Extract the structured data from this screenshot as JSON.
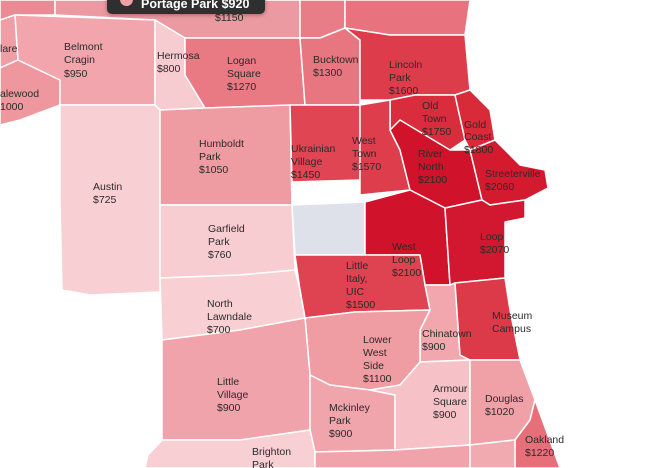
{
  "tooltip": {
    "text": "Portage Park $920",
    "dot_color": "#f0a0a6"
  },
  "map": {
    "lake_color": "#ffffff",
    "no_data_color": "#dfe1ea",
    "neighborhoods": [
      {
        "id": "top-left-edge",
        "name": "",
        "price": "",
        "color": "#e98a95"
      },
      {
        "id": "top-strip",
        "name": "",
        "price": "$1150",
        "color": "#ec9aa2"
      },
      {
        "id": "top-right-a",
        "name": "",
        "price": "",
        "color": "#e87c87"
      },
      {
        "id": "top-right-b",
        "name": "",
        "price": "",
        "color": "#e8737e"
      },
      {
        "id": "clare-edge",
        "name": "lare",
        "price": "",
        "color": "#ef9ea6"
      },
      {
        "id": "edgewater-edge",
        "name": "alewood",
        "price": "1000",
        "color": "#ee979f"
      },
      {
        "id": "belmont-cragin",
        "name": "Belmont Cragin",
        "price": "$950",
        "color": "#f2a5ac"
      },
      {
        "id": "hermosa",
        "name": "Hermosa",
        "price": "$800",
        "color": "#f7ccd0"
      },
      {
        "id": "logan-square",
        "name": "Logan Square",
        "price": "$1270",
        "color": "#e97983"
      },
      {
        "id": "bucktown",
        "name": "Bucktown",
        "price": "$1300",
        "color": "#e87680"
      },
      {
        "id": "lincoln-park",
        "name": "Lincoln Park",
        "price": "$1600",
        "color": "#dd3d4b"
      },
      {
        "id": "old-town",
        "name": "Old Town",
        "price": "$1750",
        "color": "#d92c3c"
      },
      {
        "id": "gold-coast",
        "name": "Gold Coast",
        "price": "$1800",
        "color": "#d92a3a"
      },
      {
        "id": "austin",
        "name": "Austin",
        "price": "$725",
        "color": "#f8cfd3"
      },
      {
        "id": "humboldt-park",
        "name": "Humboldt Park",
        "price": "$1050",
        "color": "#ee9ba2"
      },
      {
        "id": "ukrainian-village",
        "name": "Ukrainian Village",
        "price": "$1450",
        "color": "#e04553"
      },
      {
        "id": "west-town",
        "name": "West Town",
        "price": "$1570",
        "color": "#de3e4c"
      },
      {
        "id": "river-north",
        "name": "River North",
        "price": "$2100",
        "color": "#d0122a"
      },
      {
        "id": "streeterville",
        "name": "Streeterville",
        "price": "$2060",
        "color": "#d41a2f"
      },
      {
        "id": "garfield-park",
        "name": "Garfield Park",
        "price": "$760",
        "color": "#f8cdd1"
      },
      {
        "id": "no-data",
        "name": "",
        "price": "",
        "color": "#dfe1ea"
      },
      {
        "id": "west-loop",
        "name": "West Loop",
        "price": "$2100",
        "color": "#d0122a"
      },
      {
        "id": "loop",
        "name": "Loop",
        "price": "$2070",
        "color": "#d21830"
      },
      {
        "id": "little-italy",
        "name": "Little Italy, UIC",
        "price": "$1500",
        "color": "#df4250"
      },
      {
        "id": "north-lawndale",
        "name": "North Lawndale",
        "price": "$700",
        "color": "#f8d0d4"
      },
      {
        "id": "chinatown",
        "name": "Chinatown",
        "price": "$900",
        "color": "#f2a7ae"
      },
      {
        "id": "museum-campus",
        "name": "Museum Campus",
        "price": "",
        "color": "#dc3a48"
      },
      {
        "id": "lower-west-side",
        "name": "Lower West Side",
        "price": "$1100",
        "color": "#ef9ca3"
      },
      {
        "id": "little-village",
        "name": "Little Village",
        "price": "$900",
        "color": "#f0a3aa"
      },
      {
        "id": "mckinley-park",
        "name": "Mckinley Park",
        "price": "$900",
        "color": "#f0a4ab"
      },
      {
        "id": "armour-square",
        "name": "Armour Square",
        "price": "$900",
        "color": "#f6c2c7"
      },
      {
        "id": "douglas",
        "name": "Douglas",
        "price": "$1020",
        "color": "#f0a0a7"
      },
      {
        "id": "oakland",
        "name": "Oakland",
        "price": "$1220",
        "color": "#e66f7a"
      },
      {
        "id": "brighton-park",
        "name": "Brighton Park",
        "price": "",
        "color": "#f8d0d4"
      },
      {
        "id": "bottom-middle",
        "name": "",
        "price": "",
        "color": "#f0a3aa"
      },
      {
        "id": "bottom-right",
        "name": "",
        "price": "",
        "color": "#f2aab1"
      }
    ]
  }
}
